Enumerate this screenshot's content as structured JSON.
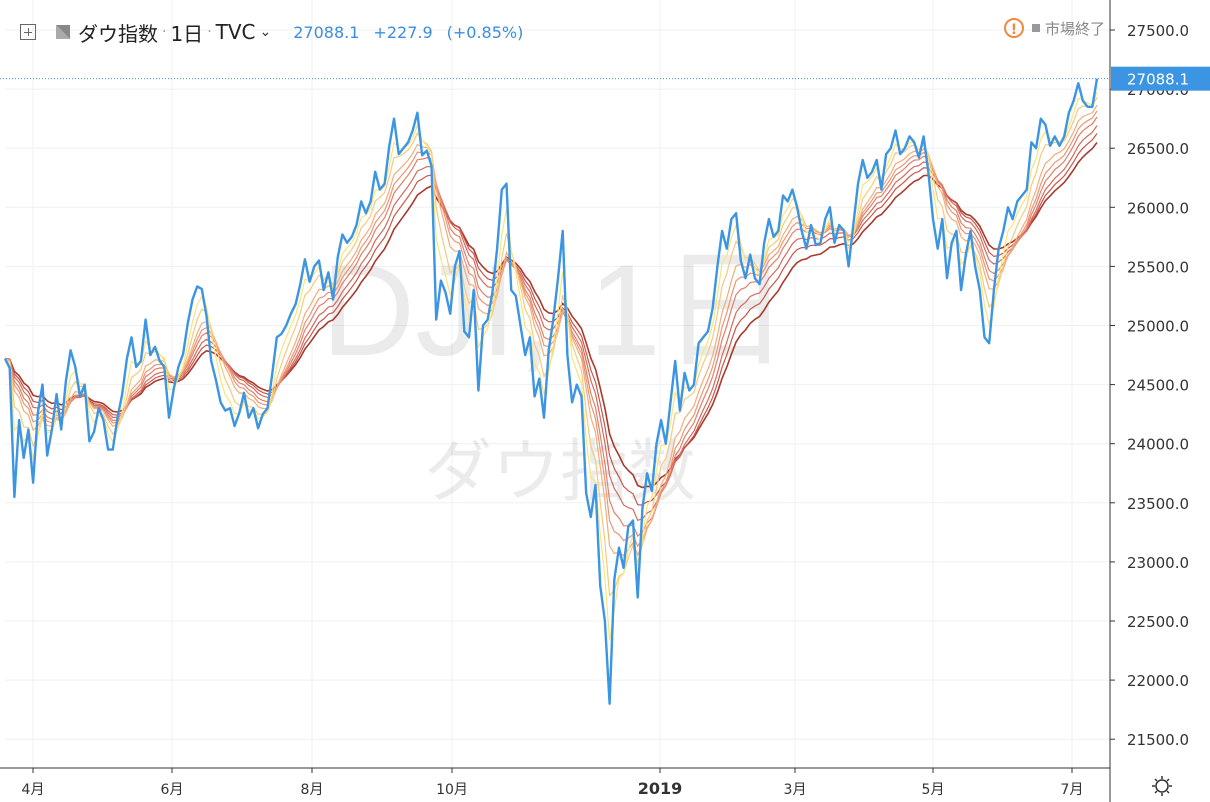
{
  "header": {
    "symbol": "ダウ指数",
    "interval": "1日",
    "source": "TVC",
    "last": "27088.1",
    "change": "+227.9",
    "change_pct": "(+0.85%)",
    "status": "市場終了"
  },
  "watermark": {
    "line1": "DJI, 1日",
    "line2": "ダウ指数"
  },
  "colors": {
    "price_line": "#3c95e2",
    "ribbon": [
      "#f7e57e",
      "#f6c97e",
      "#f2ad79",
      "#ec9576",
      "#e37f6a",
      "#d66a5c",
      "#c7564c",
      "#a83a2c"
    ],
    "last_price_bg": "#3c95e2",
    "status_icon": "#f08a43"
  },
  "chart_data": {
    "type": "line",
    "title": "ダウ指数",
    "ylim": [
      21200,
      27800
    ],
    "y_ticks": [
      "27500.0",
      "27000.0",
      "26500.0",
      "26000.0",
      "25500.0",
      "25000.0",
      "24500.0",
      "24000.0",
      "23500.0",
      "23000.0",
      "22500.0",
      "22000.0",
      "21500.0"
    ],
    "x_ticks": [
      {
        "label": "4月",
        "bold": false
      },
      {
        "label": "6月",
        "bold": false
      },
      {
        "label": "8月",
        "bold": false
      },
      {
        "label": "10月",
        "bold": false
      },
      {
        "label": "2019",
        "bold": true
      },
      {
        "label": "3月",
        "bold": false
      },
      {
        "label": "5月",
        "bold": false
      },
      {
        "label": "7月",
        "bold": false
      }
    ],
    "last_price": 27088.1,
    "last_price_label": "27088.1",
    "series": [
      {
        "kind": "price",
        "values": [
          24720,
          24640,
          23550,
          24200,
          23880,
          24120,
          23670,
          24260,
          24500,
          23900,
          24120,
          24420,
          24120,
          24530,
          24790,
          24650,
          24400,
          24500,
          24020,
          24100,
          24300,
          24200,
          23950,
          23950,
          24220,
          24420,
          24720,
          24900,
          24650,
          24700,
          25050,
          24750,
          24820,
          24700,
          24650,
          24220,
          24460,
          24650,
          24760,
          25020,
          25220,
          25330,
          25310,
          25080,
          24700,
          24540,
          24350,
          24280,
          24300,
          24150,
          24260,
          24430,
          24220,
          24300,
          24130,
          24250,
          24300,
          24580,
          24900,
          24930,
          25000,
          25100,
          25180,
          25350,
          25560,
          25370,
          25500,
          25550,
          25300,
          25450,
          25220,
          25580,
          25770,
          25700,
          25750,
          25850,
          26050,
          25950,
          26050,
          26300,
          26150,
          26200,
          26520,
          26750,
          26450,
          26500,
          26550,
          26650,
          26800,
          26440,
          26480,
          26350,
          25050,
          25380,
          25280,
          25100,
          25500,
          25630,
          24950,
          24900,
          25300,
          24450,
          25000,
          25050,
          25280,
          25650,
          26150,
          26200,
          25300,
          25250,
          25000,
          24750,
          24900,
          24400,
          24550,
          24220,
          24790,
          25050,
          25400,
          25800,
          24750,
          24350,
          24500,
          24400,
          23580,
          23380,
          23650,
          22800,
          22500,
          21800,
          22850,
          23120,
          22950,
          23300,
          23350,
          22700,
          23450,
          23750,
          23600,
          24000,
          24200,
          24000,
          24350,
          24700,
          24280,
          24600,
          24450,
          24500,
          24850,
          24900,
          24950,
          25150,
          25500,
          25800,
          25650,
          25900,
          25950,
          25550,
          25400,
          25600,
          25400,
          25350,
          25700,
          25900,
          25750,
          25800,
          26100,
          26050,
          26150,
          26000,
          25800,
          25650,
          25850,
          25680,
          25700,
          25900,
          26000,
          25700,
          25850,
          25800,
          25500,
          25850,
          26200,
          26400,
          26250,
          26300,
          26400,
          26150,
          26450,
          26500,
          26650,
          26450,
          26500,
          26600,
          26550,
          26420,
          26600,
          26300,
          25900,
          25650,
          25900,
          25400,
          25700,
          25800,
          25300,
          25600,
          25800,
          25500,
          25300,
          24900,
          24850,
          25300,
          25650,
          25800,
          26000,
          25900,
          26050,
          26100,
          26150,
          26550,
          26500,
          26750,
          26700,
          26520,
          26600,
          26520,
          26600,
          26800,
          26900,
          27050,
          26900,
          26850,
          26850,
          27088
        ]
      },
      {
        "kind": "ema",
        "period": 3
      },
      {
        "kind": "ema",
        "period": 5
      },
      {
        "kind": "ema",
        "period": 8
      },
      {
        "kind": "ema",
        "period": 10
      },
      {
        "kind": "ema",
        "period": 12
      },
      {
        "kind": "ema",
        "period": 15
      },
      {
        "kind": "ema",
        "period": 18
      },
      {
        "kind": "ema",
        "period": 22
      }
    ]
  }
}
